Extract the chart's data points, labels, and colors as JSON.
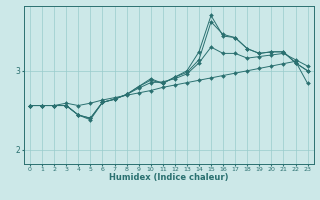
{
  "xlabel": "Humidex (Indice chaleur)",
  "bg_color": "#cce8e8",
  "line_color": "#2a7070",
  "grid_color": "#99cccc",
  "xlim": [
    -0.5,
    23.5
  ],
  "ylim": [
    1.82,
    3.82
  ],
  "yticks": [
    2.0,
    3.0
  ],
  "xticks": [
    0,
    1,
    2,
    3,
    4,
    5,
    6,
    7,
    8,
    9,
    10,
    11,
    12,
    13,
    14,
    15,
    16,
    17,
    18,
    19,
    20,
    21,
    22,
    23
  ],
  "lines": [
    {
      "x": [
        0,
        1,
        2,
        3,
        4,
        5,
        6,
        7,
        8,
        9,
        10,
        11,
        12,
        13,
        14,
        15,
        16,
        17,
        18,
        19,
        20,
        21,
        22,
        23
      ],
      "y": [
        2.56,
        2.56,
        2.56,
        2.59,
        2.56,
        2.59,
        2.63,
        2.66,
        2.69,
        2.72,
        2.75,
        2.79,
        2.82,
        2.85,
        2.88,
        2.91,
        2.94,
        2.97,
        3.0,
        3.03,
        3.06,
        3.09,
        3.12,
        2.84
      ]
    },
    {
      "x": [
        0,
        1,
        2,
        3,
        4,
        5,
        6,
        7,
        8,
        9,
        10,
        11,
        12,
        13,
        14,
        15,
        16,
        17,
        18,
        19,
        20,
        21,
        22,
        23
      ],
      "y": [
        2.56,
        2.56,
        2.56,
        2.56,
        2.44,
        2.4,
        2.6,
        2.64,
        2.7,
        2.78,
        2.85,
        2.86,
        2.9,
        2.96,
        3.1,
        3.3,
        3.22,
        3.22,
        3.16,
        3.18,
        3.2,
        3.22,
        3.14,
        3.06
      ]
    },
    {
      "x": [
        0,
        1,
        2,
        3,
        4,
        5,
        6,
        7,
        8,
        9,
        10,
        11,
        12,
        13,
        14,
        15,
        16,
        17,
        18,
        19,
        20,
        21,
        22,
        23
      ],
      "y": [
        2.56,
        2.56,
        2.56,
        2.56,
        2.44,
        2.4,
        2.6,
        2.64,
        2.7,
        2.8,
        2.88,
        2.84,
        2.92,
        2.98,
        3.14,
        3.62,
        3.46,
        3.42,
        3.28,
        3.22,
        3.24,
        3.24,
        3.1,
        3.0
      ]
    },
    {
      "x": [
        0,
        1,
        2,
        3,
        4,
        5,
        6,
        7,
        8,
        9,
        10,
        11,
        12,
        13,
        14,
        15,
        16,
        17,
        18,
        19,
        20,
        21,
        22,
        23
      ],
      "y": [
        2.56,
        2.56,
        2.56,
        2.56,
        2.44,
        2.38,
        2.6,
        2.64,
        2.7,
        2.8,
        2.9,
        2.84,
        2.92,
        3.0,
        3.24,
        3.7,
        3.44,
        3.42,
        3.28,
        3.22,
        3.24,
        3.24,
        3.1,
        3.0
      ]
    }
  ]
}
